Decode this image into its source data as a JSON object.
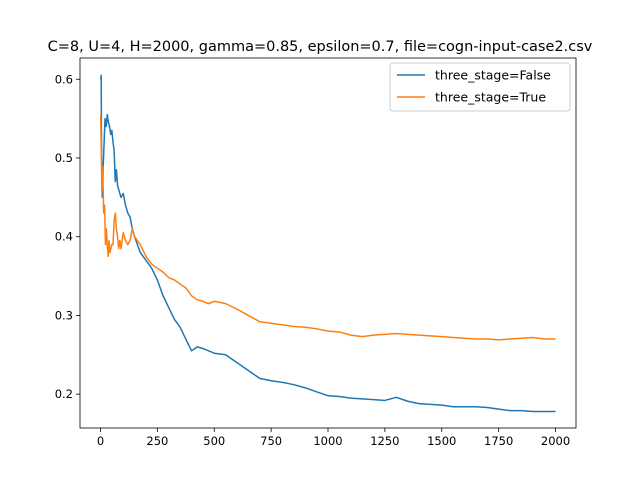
{
  "chart_data": {
    "type": "line",
    "title": "C=8, U=4, H=2000, gamma=0.85, epsilon=0.7, file=cogn-input-case2.csv",
    "xlabel": "",
    "ylabel": "",
    "xlim": [
      -90,
      2090
    ],
    "ylim": [
      0.157,
      0.627
    ],
    "xticks": [
      0,
      250,
      500,
      750,
      1000,
      1250,
      1500,
      1750,
      2000
    ],
    "xtick_labels": [
      "0",
      "250",
      "500",
      "750",
      "1000",
      "1250",
      "1500",
      "1750",
      "2000"
    ],
    "yticks": [
      0.2,
      0.3,
      0.4,
      0.5,
      0.6
    ],
    "ytick_labels": [
      "0.2",
      "0.3",
      "0.4",
      "0.5",
      "0.6"
    ],
    "legend": {
      "position": "top-right"
    },
    "series": [
      {
        "name": "three_stage=False",
        "color": "#1f77b4",
        "points": [
          [
            1,
            0.6
          ],
          [
            3,
            0.605
          ],
          [
            5,
            0.5
          ],
          [
            8,
            0.45
          ],
          [
            12,
            0.49
          ],
          [
            16,
            0.52
          ],
          [
            20,
            0.55
          ],
          [
            25,
            0.54
          ],
          [
            30,
            0.555
          ],
          [
            35,
            0.545
          ],
          [
            40,
            0.54
          ],
          [
            45,
            0.53
          ],
          [
            50,
            0.535
          ],
          [
            55,
            0.52
          ],
          [
            60,
            0.51
          ],
          [
            65,
            0.47
          ],
          [
            70,
            0.485
          ],
          [
            75,
            0.465
          ],
          [
            80,
            0.46
          ],
          [
            90,
            0.45
          ],
          [
            100,
            0.455
          ],
          [
            110,
            0.44
          ],
          [
            120,
            0.43
          ],
          [
            130,
            0.425
          ],
          [
            140,
            0.41
          ],
          [
            150,
            0.4
          ],
          [
            175,
            0.38
          ],
          [
            200,
            0.37
          ],
          [
            225,
            0.36
          ],
          [
            250,
            0.345
          ],
          [
            275,
            0.325
          ],
          [
            300,
            0.31
          ],
          [
            325,
            0.295
          ],
          [
            350,
            0.285
          ],
          [
            375,
            0.27
          ],
          [
            400,
            0.255
          ],
          [
            425,
            0.26
          ],
          [
            450,
            0.258
          ],
          [
            475,
            0.255
          ],
          [
            500,
            0.252
          ],
          [
            550,
            0.25
          ],
          [
            600,
            0.24
          ],
          [
            650,
            0.23
          ],
          [
            700,
            0.22
          ],
          [
            750,
            0.217
          ],
          [
            800,
            0.215
          ],
          [
            850,
            0.212
          ],
          [
            900,
            0.208
          ],
          [
            950,
            0.203
          ],
          [
            1000,
            0.198
          ],
          [
            1050,
            0.197
          ],
          [
            1100,
            0.195
          ],
          [
            1150,
            0.194
          ],
          [
            1200,
            0.193
          ],
          [
            1250,
            0.192
          ],
          [
            1300,
            0.196
          ],
          [
            1350,
            0.191
          ],
          [
            1400,
            0.188
          ],
          [
            1450,
            0.187
          ],
          [
            1500,
            0.186
          ],
          [
            1550,
            0.184
          ],
          [
            1600,
            0.184
          ],
          [
            1650,
            0.184
          ],
          [
            1700,
            0.183
          ],
          [
            1750,
            0.181
          ],
          [
            1800,
            0.179
          ],
          [
            1850,
            0.179
          ],
          [
            1900,
            0.178
          ],
          [
            1950,
            0.178
          ],
          [
            2000,
            0.178
          ]
        ]
      },
      {
        "name": "three_stage=True",
        "color": "#ff7f0e",
        "points": [
          [
            1,
            0.555
          ],
          [
            3,
            0.52
          ],
          [
            6,
            0.46
          ],
          [
            10,
            0.49
          ],
          [
            14,
            0.43
          ],
          [
            18,
            0.44
          ],
          [
            22,
            0.39
          ],
          [
            26,
            0.41
          ],
          [
            30,
            0.39
          ],
          [
            34,
            0.375
          ],
          [
            38,
            0.395
          ],
          [
            42,
            0.38
          ],
          [
            46,
            0.385
          ],
          [
            50,
            0.39
          ],
          [
            55,
            0.39
          ],
          [
            60,
            0.42
          ],
          [
            65,
            0.43
          ],
          [
            70,
            0.41
          ],
          [
            75,
            0.4
          ],
          [
            80,
            0.385
          ],
          [
            85,
            0.395
          ],
          [
            90,
            0.385
          ],
          [
            100,
            0.405
          ],
          [
            110,
            0.395
          ],
          [
            120,
            0.39
          ],
          [
            130,
            0.395
          ],
          [
            140,
            0.41
          ],
          [
            150,
            0.4
          ],
          [
            175,
            0.39
          ],
          [
            200,
            0.375
          ],
          [
            225,
            0.365
          ],
          [
            250,
            0.36
          ],
          [
            275,
            0.355
          ],
          [
            300,
            0.348
          ],
          [
            325,
            0.345
          ],
          [
            350,
            0.34
          ],
          [
            375,
            0.335
          ],
          [
            400,
            0.325
          ],
          [
            425,
            0.32
          ],
          [
            450,
            0.318
          ],
          [
            475,
            0.315
          ],
          [
            500,
            0.318
          ],
          [
            550,
            0.315
          ],
          [
            600,
            0.308
          ],
          [
            650,
            0.3
          ],
          [
            700,
            0.292
          ],
          [
            750,
            0.29
          ],
          [
            800,
            0.288
          ],
          [
            850,
            0.286
          ],
          [
            900,
            0.285
          ],
          [
            950,
            0.283
          ],
          [
            1000,
            0.28
          ],
          [
            1050,
            0.279
          ],
          [
            1100,
            0.275
          ],
          [
            1150,
            0.273
          ],
          [
            1200,
            0.275
          ],
          [
            1250,
            0.276
          ],
          [
            1300,
            0.277
          ],
          [
            1350,
            0.276
          ],
          [
            1400,
            0.275
          ],
          [
            1450,
            0.274
          ],
          [
            1500,
            0.273
          ],
          [
            1550,
            0.272
          ],
          [
            1600,
            0.271
          ],
          [
            1650,
            0.27
          ],
          [
            1700,
            0.27
          ],
          [
            1750,
            0.269
          ],
          [
            1800,
            0.27
          ],
          [
            1850,
            0.271
          ],
          [
            1900,
            0.272
          ],
          [
            1950,
            0.27
          ],
          [
            2000,
            0.27
          ]
        ]
      }
    ]
  }
}
